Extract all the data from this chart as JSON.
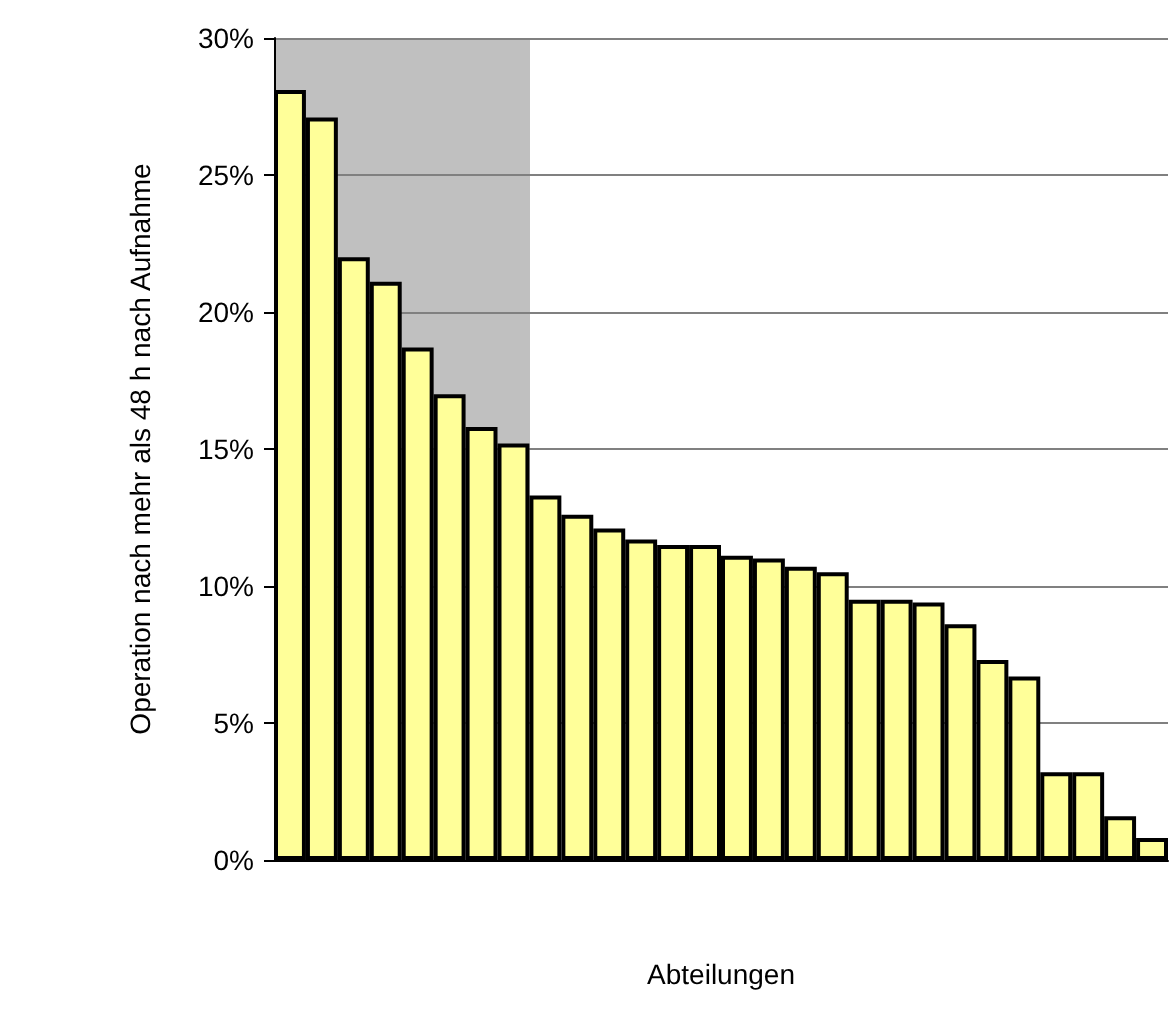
{
  "chart_data": {
    "type": "bar",
    "xlabel": "Abteilungen",
    "ylabel": "Operation nach mehr als 48 h nach Aufnahme",
    "categories": [
      null,
      null,
      null,
      null,
      null,
      null,
      null,
      null,
      null,
      null,
      null,
      null,
      null,
      null,
      null,
      null,
      null,
      null,
      null,
      null,
      null,
      null,
      null,
      null,
      null,
      null,
      null,
      null
    ],
    "values": [
      28.1,
      27.1,
      22.0,
      21.1,
      18.7,
      17.0,
      15.8,
      15.2,
      13.3,
      12.6,
      12.1,
      11.7,
      11.5,
      11.5,
      11.1,
      11.0,
      10.7,
      10.5,
      9.5,
      9.5,
      9.4,
      8.6,
      7.3,
      6.7,
      3.2,
      3.2,
      1.6,
      0.8
    ],
    "color": "#ffff99",
    "ylim": [
      0,
      30
    ],
    "yticks": [
      {
        "value": 0,
        "label": "0%"
      },
      {
        "value": 5,
        "label": "5%"
      },
      {
        "value": 10,
        "label": "10%"
      },
      {
        "value": 15,
        "label": "15%"
      },
      {
        "value": 20,
        "label": "20%"
      },
      {
        "value": 25,
        "label": "25%"
      },
      {
        "value": 30,
        "label": "30%"
      }
    ],
    "grid": "y",
    "tick_labels": "y"
  }
}
